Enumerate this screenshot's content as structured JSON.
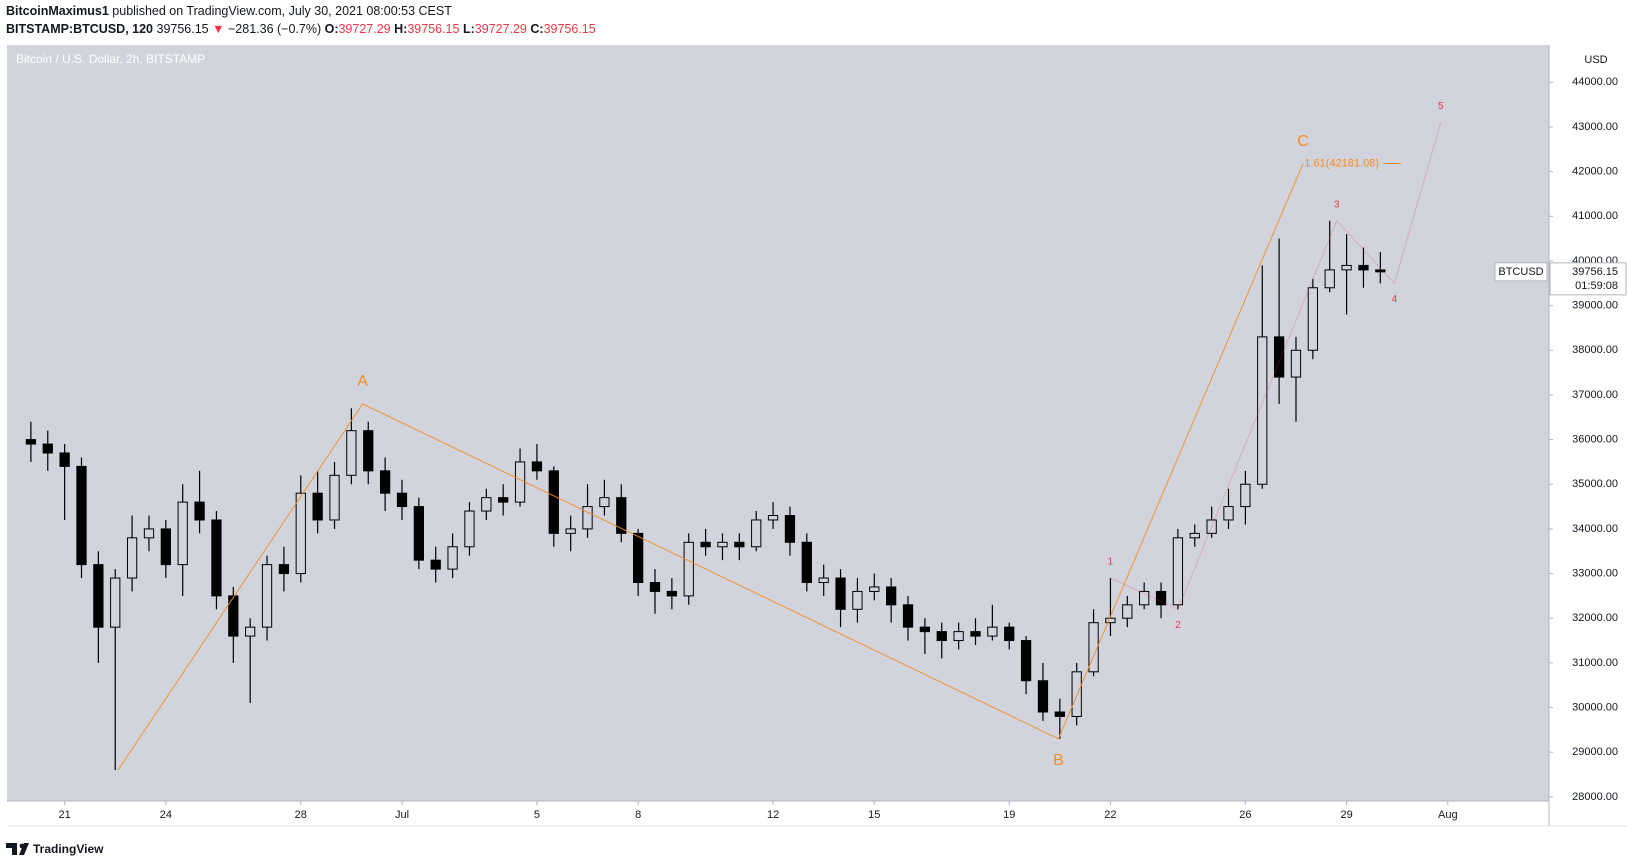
{
  "header": {
    "author": "BitcoinMaximus1",
    "published": "published on TradingView.com, July 30, 2021 08:00:53 CEST",
    "symbol": "BITSTAMP:BTCUSD, 120",
    "last": "39756.15",
    "arrow": "▼",
    "change": "−281.36 (−0.7%)",
    "ohlc": [
      {
        "key": "O:",
        "value": "39727.29"
      },
      {
        "key": "H:",
        "value": "39756.15"
      },
      {
        "key": "L:",
        "value": "39727.29"
      },
      {
        "key": "C:",
        "value": "39756.15"
      }
    ]
  },
  "chart_data": {
    "type": "candlestick",
    "title": "Bitcoin / U.S. Dollar, 2h, BITSTAMP",
    "y_unit": "USD",
    "color": "#000000",
    "background": "#d1d4dc",
    "x": [
      "2021-06-20T00:00",
      "2021-06-20T12:00",
      "2021-06-21T00:00",
      "2021-06-21T12:00",
      "2021-06-22T00:00",
      "2021-06-22T12:00",
      "2021-06-23T00:00",
      "2021-06-23T12:00",
      "2021-06-24T00:00",
      "2021-06-24T12:00",
      "2021-06-25T00:00",
      "2021-06-25T12:00",
      "2021-06-26T00:00",
      "2021-06-26T12:00",
      "2021-06-27T00:00",
      "2021-06-27T12:00",
      "2021-06-28T00:00",
      "2021-06-28T12:00",
      "2021-06-29T00:00",
      "2021-06-29T12:00",
      "2021-06-30T00:00",
      "2021-06-30T12:00",
      "2021-07-01T00:00",
      "2021-07-01T12:00",
      "2021-07-02T00:00",
      "2021-07-02T12:00",
      "2021-07-03T00:00",
      "2021-07-03T12:00",
      "2021-07-04T00:00",
      "2021-07-04T12:00",
      "2021-07-05T00:00",
      "2021-07-05T12:00",
      "2021-07-06T00:00",
      "2021-07-06T12:00",
      "2021-07-07T00:00",
      "2021-07-07T12:00",
      "2021-07-08T00:00",
      "2021-07-08T12:00",
      "2021-07-09T00:00",
      "2021-07-09T12:00",
      "2021-07-10T00:00",
      "2021-07-10T12:00",
      "2021-07-11T00:00",
      "2021-07-11T12:00",
      "2021-07-12T00:00",
      "2021-07-12T12:00",
      "2021-07-13T00:00",
      "2021-07-13T12:00",
      "2021-07-14T00:00",
      "2021-07-14T12:00",
      "2021-07-15T00:00",
      "2021-07-15T12:00",
      "2021-07-16T00:00",
      "2021-07-16T12:00",
      "2021-07-17T00:00",
      "2021-07-17T12:00",
      "2021-07-18T00:00",
      "2021-07-18T12:00",
      "2021-07-19T00:00",
      "2021-07-19T12:00",
      "2021-07-20T00:00",
      "2021-07-20T12:00",
      "2021-07-21T00:00",
      "2021-07-21T12:00",
      "2021-07-22T00:00",
      "2021-07-22T12:00",
      "2021-07-23T00:00",
      "2021-07-23T12:00",
      "2021-07-24T00:00",
      "2021-07-24T12:00",
      "2021-07-25T00:00",
      "2021-07-25T12:00",
      "2021-07-26T00:00",
      "2021-07-26T12:00",
      "2021-07-27T00:00",
      "2021-07-27T12:00",
      "2021-07-28T00:00",
      "2021-07-28T12:00",
      "2021-07-29T00:00",
      "2021-07-29T12:00",
      "2021-07-30T00:00"
    ],
    "open": [
      36000,
      35900,
      35700,
      35400,
      33200,
      31800,
      32900,
      33800,
      34000,
      33200,
      34600,
      34200,
      32500,
      31600,
      31800,
      33200,
      33000,
      34800,
      34200,
      35200,
      36200,
      35300,
      34800,
      34500,
      33300,
      33100,
      33600,
      34400,
      34700,
      34600,
      35500,
      35300,
      33900,
      34000,
      34500,
      34700,
      33900,
      32800,
      32600,
      32500,
      33700,
      33600,
      33700,
      33600,
      34200,
      34300,
      33700,
      32800,
      32900,
      32200,
      32600,
      32700,
      32300,
      31800,
      31700,
      31500,
      31700,
      31600,
      31800,
      31500,
      30600,
      29900,
      29800,
      30800,
      31900,
      32000,
      32300,
      32600,
      32300,
      33800,
      33900,
      34200,
      34500,
      35000,
      38300,
      37400,
      38000,
      39400,
      39800,
      39900,
      39800
    ],
    "high": [
      36400,
      36200,
      35900,
      35600,
      33500,
      33100,
      34300,
      34300,
      34200,
      35000,
      35300,
      34400,
      32700,
      32000,
      33400,
      33600,
      35200,
      35300,
      35500,
      36700,
      36400,
      35600,
      35100,
      34700,
      33600,
      33900,
      34600,
      34900,
      35000,
      35800,
      35900,
      35400,
      34300,
      35000,
      35100,
      35000,
      34000,
      33100,
      32900,
      33900,
      34000,
      33900,
      33900,
      34400,
      34600,
      34500,
      33900,
      33200,
      33100,
      32900,
      33000,
      32900,
      32500,
      32000,
      31900,
      31900,
      32000,
      32300,
      31900,
      31600,
      31000,
      30200,
      31000,
      32200,
      32900,
      32500,
      32800,
      32800,
      34000,
      34100,
      34500,
      34900,
      35300,
      39900,
      40500,
      38300,
      39600,
      40900,
      40600,
      40300,
      40200
    ],
    "low": [
      35500,
      35300,
      34200,
      32900,
      31000,
      28600,
      32600,
      33500,
      32900,
      32500,
      33900,
      32200,
      31000,
      30100,
      31500,
      32600,
      32800,
      33900,
      34000,
      35000,
      35000,
      34400,
      34200,
      33100,
      32800,
      32900,
      33400,
      34200,
      34300,
      34500,
      35100,
      33600,
      33500,
      33800,
      34300,
      33700,
      32500,
      32100,
      32200,
      32300,
      33400,
      33300,
      33300,
      33500,
      34000,
      33400,
      32600,
      32500,
      31800,
      31900,
      32400,
      31900,
      31500,
      31200,
      31100,
      31300,
      31400,
      31500,
      31300,
      30300,
      29700,
      29300,
      29600,
      30700,
      31600,
      31800,
      32200,
      32000,
      32200,
      33600,
      33800,
      34000,
      34100,
      34900,
      36800,
      36400,
      37800,
      39300,
      38800,
      39400,
      39500
    ],
    "close": [
      35900,
      35700,
      35400,
      33200,
      31800,
      32900,
      33800,
      34000,
      33200,
      34600,
      34200,
      32500,
      31600,
      31800,
      33200,
      33000,
      34800,
      34200,
      35200,
      36200,
      35300,
      34800,
      34500,
      33300,
      33100,
      33600,
      34400,
      34700,
      34600,
      35500,
      35300,
      33900,
      34000,
      34500,
      34700,
      33900,
      32800,
      32600,
      32500,
      33700,
      33600,
      33700,
      33600,
      34200,
      34300,
      33700,
      32800,
      32900,
      32200,
      32600,
      32700,
      32300,
      31800,
      31700,
      31500,
      31700,
      31600,
      31800,
      31500,
      30600,
      29900,
      29800,
      30800,
      31900,
      32000,
      32300,
      32600,
      32300,
      33800,
      33900,
      34200,
      34500,
      35000,
      38300,
      37400,
      38000,
      39400,
      39800,
      39900,
      39800,
      39756
    ],
    "xlim": [
      "2021-06-19T07:00",
      "2021-08-04T00:00"
    ],
    "xticks": [
      {
        "value": "2021-06-21",
        "label": "21"
      },
      {
        "value": "2021-06-24",
        "label": "24"
      },
      {
        "value": "2021-06-28",
        "label": "28"
      },
      {
        "value": "2021-07-01",
        "label": "Jul"
      },
      {
        "value": "2021-07-05",
        "label": "5"
      },
      {
        "value": "2021-07-08",
        "label": "8"
      },
      {
        "value": "2021-07-12",
        "label": "12"
      },
      {
        "value": "2021-07-15",
        "label": "15"
      },
      {
        "value": "2021-07-19",
        "label": "19"
      },
      {
        "value": "2021-07-22",
        "label": "22"
      },
      {
        "value": "2021-07-26",
        "label": "26"
      },
      {
        "value": "2021-07-29",
        "label": "29"
      },
      {
        "value": "2021-08-01",
        "label": "Aug"
      }
    ],
    "ylim": [
      27907,
      44836
    ],
    "yticks": [
      {
        "value": 28000,
        "label": "28000.00"
      },
      {
        "value": 29000,
        "label": "29000.00"
      },
      {
        "value": 30000,
        "label": "30000.00"
      },
      {
        "value": 31000,
        "label": "31000.00"
      },
      {
        "value": 32000,
        "label": "32000.00"
      },
      {
        "value": 33000,
        "label": "33000.00"
      },
      {
        "value": 34000,
        "label": "34000.00"
      },
      {
        "value": 35000,
        "label": "35000.00"
      },
      {
        "value": 36000,
        "label": "36000.00"
      },
      {
        "value": 37000,
        "label": "37000.00"
      },
      {
        "value": 38000,
        "label": "38000.00"
      },
      {
        "value": 39000,
        "label": "39000.00"
      },
      {
        "value": 40000,
        "label": "40000.00"
      },
      {
        "value": 41000,
        "label": "41000.00"
      },
      {
        "value": 42000,
        "label": "42000.00"
      },
      {
        "value": 43000,
        "label": "43000.00"
      },
      {
        "value": 44000,
        "label": "44000.00"
      }
    ],
    "waves": [
      {
        "color": "#f68b1f",
        "label_size": 16,
        "points": [
          {
            "x": "2021-06-22T14:00",
            "y": 28600
          },
          {
            "x": "2021-06-29T20:00",
            "y": 36800,
            "label": "A",
            "anchor": "above"
          },
          {
            "x": "2021-07-20T11:00",
            "y": 29300,
            "label": "B",
            "anchor": "below"
          },
          {
            "x": "2021-07-27T17:00",
            "y": 42181,
            "label": "C",
            "anchor": "above"
          }
        ]
      },
      {
        "color": "#f23645",
        "label_size": 10,
        "points": [
          {
            "x": "2021-07-22T00:00",
            "y": 32900,
            "label": "1",
            "anchor": "above"
          },
          {
            "x": "2021-07-24T00:00",
            "y": 32200,
            "label": "2",
            "anchor": "below"
          },
          {
            "x": "2021-07-28T17:00",
            "y": 40900,
            "label": "3",
            "anchor": "above"
          },
          {
            "x": "2021-07-30T10:00",
            "y": 39500,
            "label": "4",
            "anchor": "below"
          },
          {
            "x": "2021-07-31T19:00",
            "y": 43100,
            "label": "5",
            "anchor": "above"
          }
        ]
      }
    ],
    "fib_level": {
      "value": 42181.08,
      "label": "1.61(42181.08)",
      "color": "#f68b1f"
    },
    "last_price": 39756.15,
    "symbol_tag": "BTCUSD",
    "countdown": "01:59:08"
  },
  "footer": {
    "brand": "TradingView"
  }
}
